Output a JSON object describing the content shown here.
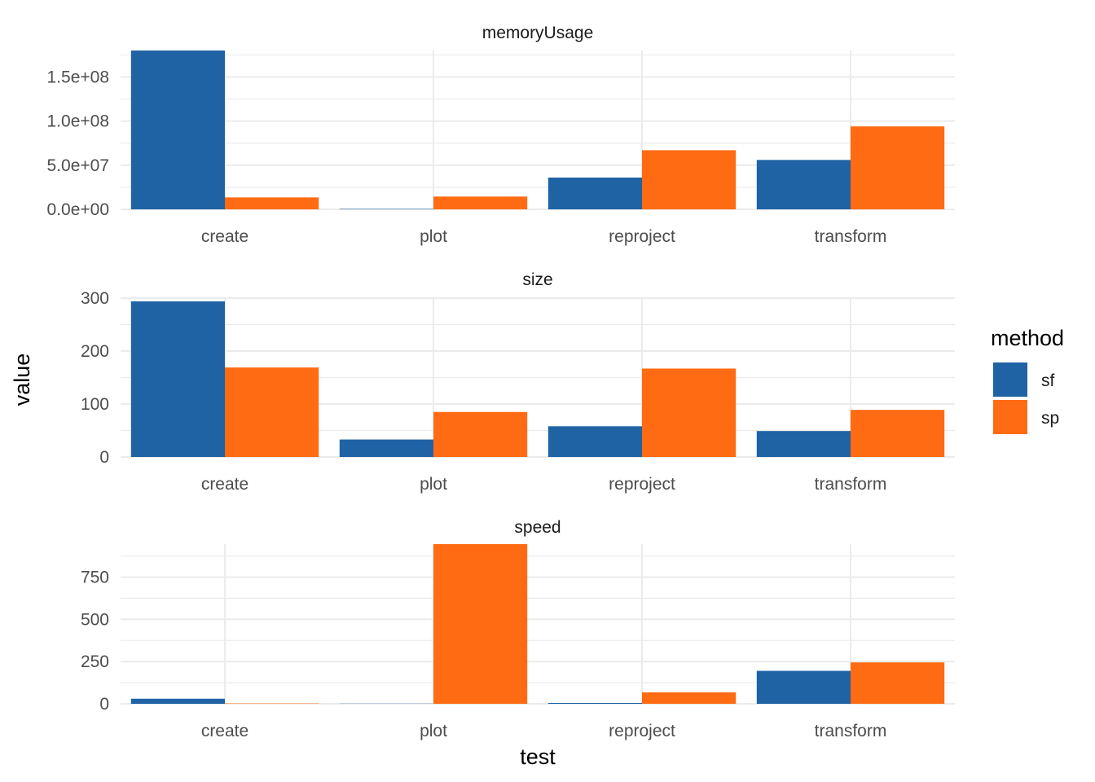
{
  "chart_data": {
    "type": "bar",
    "layout": "faceted-vertical",
    "xlabel": "test",
    "ylabel": "value",
    "legend": {
      "title": "method",
      "position": "right",
      "entries": [
        {
          "name": "sf",
          "color": "#1f63a5"
        },
        {
          "name": "sp",
          "color": "#ff6b12"
        }
      ]
    },
    "grid": true,
    "categories": [
      "create",
      "plot",
      "reproject",
      "transform"
    ],
    "facets": [
      {
        "title": "memoryUsage",
        "ylim": [
          0,
          180000000
        ],
        "yticks": [
          0,
          50000000,
          100000000,
          150000000
        ],
        "yticklabels": [
          "0.0e+00",
          "5.0e+07",
          "1.0e+08",
          "1.5e+08"
        ],
        "series": [
          {
            "name": "sf",
            "values": [
              180000000,
              500000,
              36000000,
              56000000
            ]
          },
          {
            "name": "sp",
            "values": [
              13500000,
              14500000,
              67000000,
              94000000
            ]
          }
        ]
      },
      {
        "title": "size",
        "ylim": [
          0,
          300
        ],
        "yticks": [
          0,
          100,
          200,
          300
        ],
        "yticklabels": [
          "0",
          "100",
          "200",
          "300"
        ],
        "series": [
          {
            "name": "sf",
            "values": [
              294,
              33,
              58,
              49
            ]
          },
          {
            "name": "sp",
            "values": [
              169,
              85,
              167,
              89
            ]
          }
        ]
      },
      {
        "title": "speed",
        "ylim": [
          0,
          945
        ],
        "yticks": [
          0,
          250,
          500,
          750
        ],
        "yticklabels": [
          "0",
          "250",
          "500",
          "750"
        ],
        "series": [
          {
            "name": "sf",
            "values": [
              30,
              1,
              5,
              195
            ]
          },
          {
            "name": "sp",
            "values": [
              2,
              945,
              68,
              245
            ]
          }
        ]
      }
    ]
  }
}
